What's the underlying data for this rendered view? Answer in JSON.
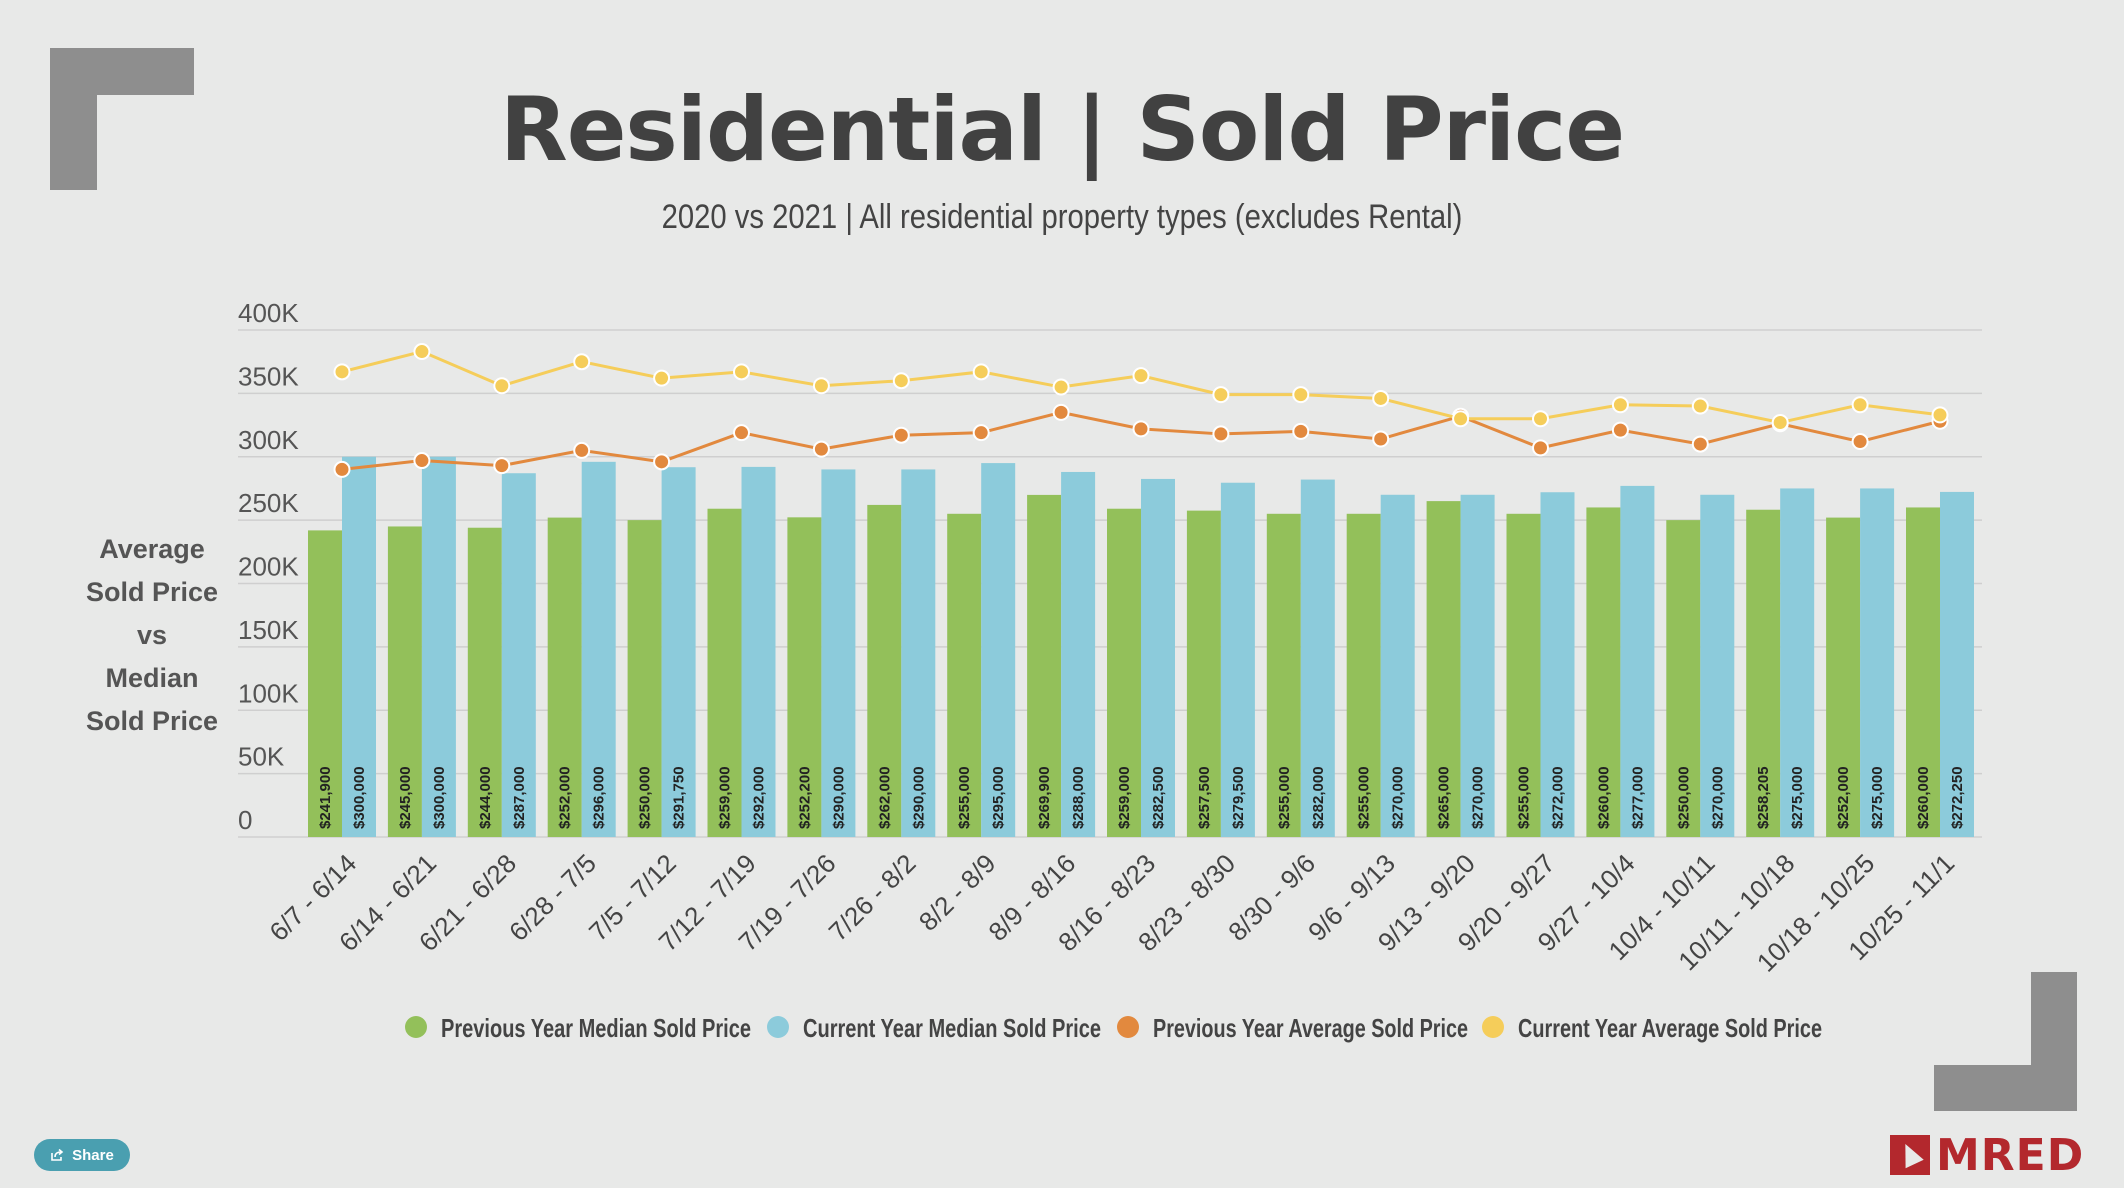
{
  "header": {
    "title": "Residential | Sold Price",
    "subtitle": "2020 vs 2021 | All residential property types (excludes Rental)"
  },
  "y_axis_label": [
    "Average",
    "Sold Price",
    "vs",
    "Median",
    "Sold Price"
  ],
  "share_label": "Share",
  "logo_text": "MRED",
  "colors": {
    "prev_median": "#93c05a",
    "curr_median": "#8ccbdb",
    "prev_avg": "#e2893e",
    "curr_avg": "#f5cd5a",
    "grid": "#cfcfcf",
    "text": "#444444"
  },
  "chart_data": {
    "type": "bar",
    "title": "Residential | Sold Price",
    "subtitle": "2020 vs 2021 | All residential property types (excludes Rental)",
    "ylabel": "Average Sold Price vs Median Sold Price",
    "ylim": [
      0,
      400000
    ],
    "yticks": [
      {
        "value": 0,
        "label": "0"
      },
      {
        "value": 50000,
        "label": "50K"
      },
      {
        "value": 100000,
        "label": "100K"
      },
      {
        "value": 150000,
        "label": "150K"
      },
      {
        "value": 200000,
        "label": "200K"
      },
      {
        "value": 250000,
        "label": "250K"
      },
      {
        "value": 300000,
        "label": "300K"
      },
      {
        "value": 350000,
        "label": "350K"
      },
      {
        "value": 400000,
        "label": "400K"
      }
    ],
    "grid": true,
    "legend": "bottom",
    "categories": [
      "6/7 - 6/14",
      "6/14 - 6/21",
      "6/21 - 6/28",
      "6/28 - 7/5",
      "7/5 - 7/12",
      "7/12 - 7/19",
      "7/19 - 7/26",
      "7/26 - 8/2",
      "8/2 - 8/9",
      "8/9 - 8/16",
      "8/16 - 8/23",
      "8/23 - 8/30",
      "8/30 - 9/6",
      "9/6 - 9/13",
      "9/13 - 9/20",
      "9/20 - 9/27",
      "9/27 - 10/4",
      "10/4 - 10/11",
      "10/11 - 10/18",
      "10/18 - 10/25",
      "10/25 - 11/1"
    ],
    "series": [
      {
        "name": "Previous Year Median Sold Price",
        "kind": "bar",
        "values": [
          241900,
          245000,
          244000,
          252000,
          250000,
          259000,
          252200,
          262000,
          255000,
          269900,
          259000,
          257500,
          255000,
          255000,
          265000,
          255000,
          260000,
          250000,
          258205,
          252000,
          260000
        ],
        "labels": [
          "$241,900",
          "$245,000",
          "$244,000",
          "$252,000",
          "$250,000",
          "$259,000",
          "$252,200",
          "$262,000",
          "$255,000",
          "$269,900",
          "$259,000",
          "$257,500",
          "$255,000",
          "$255,000",
          "$265,000",
          "$255,000",
          "$260,000",
          "$250,000",
          "$258,205",
          "$252,000",
          "$260,000"
        ]
      },
      {
        "name": "Current Year Median Sold Price",
        "kind": "bar",
        "values": [
          300000,
          300000,
          287000,
          296000,
          291750,
          292000,
          290000,
          290000,
          295000,
          288000,
          282500,
          279500,
          282000,
          270000,
          270000,
          272000,
          277000,
          270000,
          275000,
          275000,
          272250
        ],
        "labels": [
          "$300,000",
          "$300,000",
          "$287,000",
          "$296,000",
          "$291,750",
          "$292,000",
          "$290,000",
          "$290,000",
          "$295,000",
          "$288,000",
          "$282,500",
          "$279,500",
          "$282,000",
          "$270,000",
          "$270,000",
          "$272,000",
          "$277,000",
          "$270,000",
          "$275,000",
          "$275,000",
          "$272,250"
        ]
      },
      {
        "name": "Previous Year Average Sold Price",
        "kind": "line",
        "values": [
          290000,
          297000,
          293000,
          305000,
          296000,
          319000,
          306000,
          317000,
          319000,
          335000,
          322000,
          318000,
          320000,
          314000,
          332000,
          307000,
          321000,
          310000,
          326000,
          312000,
          328000
        ]
      },
      {
        "name": "Current Year Average Sold Price",
        "kind": "line",
        "values": [
          367000,
          383000,
          356000,
          375000,
          362000,
          367000,
          356000,
          360000,
          367000,
          355000,
          364000,
          349000,
          349000,
          346000,
          330000,
          330000,
          341000,
          340000,
          327000,
          341000,
          333000
        ]
      }
    ]
  }
}
